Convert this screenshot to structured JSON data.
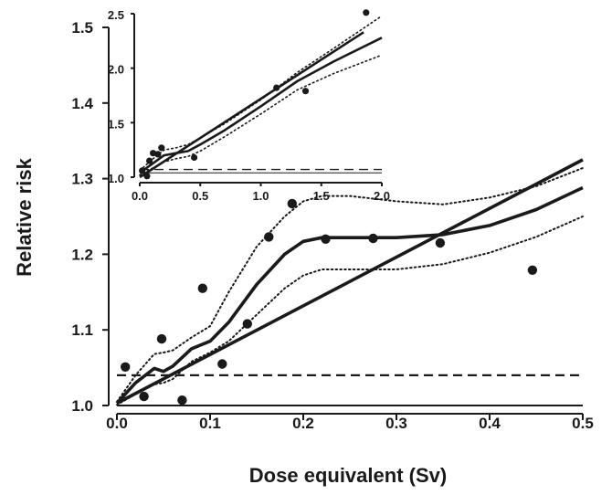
{
  "chart_data": [
    {
      "panel": "main",
      "type": "scatter",
      "title": "",
      "xlabel": "Dose equivalent (Sv)",
      "ylabel": "Relative risk",
      "xlim": [
        0.0,
        0.5
      ],
      "ylim": [
        1.0,
        1.5
      ],
      "x_ticks": [
        "0.0",
        "0.1",
        "0.2",
        "0.3",
        "0.4",
        "0.5"
      ],
      "y_ticks": [
        "1.0",
        "1.1",
        "1.2",
        "1.3",
        "1.4",
        "1.5"
      ],
      "grid": false,
      "legend": "none",
      "points": {
        "x": [
          0.009,
          0.029,
          0.048,
          0.07,
          0.092,
          0.113,
          0.14,
          0.163,
          0.188,
          0.224,
          0.275,
          0.347,
          0.446
        ],
        "y": [
          1.051,
          1.012,
          1.088,
          1.007,
          1.155,
          1.055,
          1.108,
          1.223,
          1.267,
          1.22,
          1.221,
          1.215,
          1.179
        ]
      },
      "lines": [
        {
          "role": "linear-fit",
          "style": "solid-thick",
          "x": [
            0.0,
            0.5
          ],
          "y": [
            1.003,
            1.325
          ]
        },
        {
          "role": "smooth-fit",
          "style": "solid-thick",
          "x": [
            0.0,
            0.02,
            0.04,
            0.05,
            0.06,
            0.08,
            0.1,
            0.12,
            0.15,
            0.18,
            0.2,
            0.22,
            0.25,
            0.3,
            0.35,
            0.4,
            0.45,
            0.5
          ],
          "y": [
            1.003,
            1.03,
            1.049,
            1.045,
            1.052,
            1.075,
            1.085,
            1.11,
            1.16,
            1.2,
            1.217,
            1.222,
            1.222,
            1.222,
            1.226,
            1.238,
            1.259,
            1.288
          ]
        },
        {
          "role": "upper-ci",
          "style": "dotted",
          "x": [
            0.0,
            0.02,
            0.04,
            0.05,
            0.06,
            0.08,
            0.1,
            0.12,
            0.15,
            0.18,
            0.2,
            0.22,
            0.25,
            0.3,
            0.35,
            0.4,
            0.45,
            0.5
          ],
          "y": [
            1.005,
            1.04,
            1.068,
            1.07,
            1.073,
            1.09,
            1.105,
            1.15,
            1.21,
            1.25,
            1.27,
            1.277,
            1.277,
            1.27,
            1.266,
            1.275,
            1.29,
            1.314
          ]
        },
        {
          "role": "lower-ci",
          "style": "dotted",
          "x": [
            0.0,
            0.02,
            0.04,
            0.05,
            0.06,
            0.08,
            0.1,
            0.12,
            0.15,
            0.18,
            0.2,
            0.22,
            0.25,
            0.3,
            0.35,
            0.4,
            0.45,
            0.5
          ],
          "y": [
            1.001,
            1.015,
            1.028,
            1.03,
            1.035,
            1.058,
            1.07,
            1.085,
            1.12,
            1.155,
            1.172,
            1.18,
            1.18,
            1.18,
            1.187,
            1.202,
            1.223,
            1.25
          ]
        },
        {
          "role": "reference-dashed",
          "style": "dashed",
          "x": [
            0.0,
            0.5
          ],
          "y": [
            1.04,
            1.04
          ]
        },
        {
          "role": "baseline",
          "style": "solid-thin",
          "x": [
            0.0,
            0.5
          ],
          "y": [
            1.0,
            1.0
          ]
        }
      ]
    },
    {
      "panel": "inset",
      "type": "scatter",
      "title": "",
      "xlabel": "",
      "ylabel": "",
      "xlim": [
        0.0,
        2.0
      ],
      "ylim": [
        1.0,
        2.5
      ],
      "x_ticks": [
        "0.0",
        "0.5",
        "1.0",
        "1.5",
        "2.0"
      ],
      "y_ticks": [
        "1.0",
        "1.5",
        "2.0",
        "2.5"
      ],
      "grid": false,
      "legend": "none",
      "points": {
        "x": [
          0.02,
          0.06,
          0.08,
          0.11,
          0.15,
          0.18,
          0.45,
          1.13,
          1.37,
          1.87
        ],
        "y": [
          1.06,
          1.01,
          1.15,
          1.22,
          1.21,
          1.27,
          1.18,
          1.82,
          1.79,
          2.51
        ]
      },
      "lines": [
        {
          "role": "linear-fit",
          "style": "solid-thick",
          "x": [
            0.0,
            1.85
          ],
          "y": [
            1.0,
            2.33
          ]
        },
        {
          "role": "smooth-fit",
          "style": "solid-thick",
          "x": [
            0.0,
            0.1,
            0.2,
            0.3,
            0.4,
            0.5,
            0.7,
            1.0,
            1.3,
            1.6,
            2.0
          ],
          "y": [
            1.04,
            1.12,
            1.2,
            1.22,
            1.24,
            1.3,
            1.43,
            1.65,
            1.88,
            2.06,
            2.28
          ]
        },
        {
          "role": "upper-ci",
          "style": "dotted",
          "x": [
            0.0,
            0.1,
            0.2,
            0.3,
            0.4,
            0.5,
            0.7,
            1.0,
            1.3,
            1.6,
            2.0
          ],
          "y": [
            1.06,
            1.16,
            1.25,
            1.27,
            1.3,
            1.36,
            1.49,
            1.71,
            1.96,
            2.18,
            2.48
          ]
        },
        {
          "role": "lower-ci",
          "style": "dotted",
          "x": [
            0.0,
            0.1,
            0.2,
            0.3,
            0.4,
            0.5,
            0.7,
            1.0,
            1.3,
            1.6,
            2.0
          ],
          "y": [
            1.02,
            1.08,
            1.14,
            1.17,
            1.19,
            1.24,
            1.37,
            1.58,
            1.8,
            1.95,
            2.12
          ]
        },
        {
          "role": "reference-dashed",
          "style": "dashed",
          "x": [
            0.0,
            2.0
          ],
          "y": [
            1.07,
            1.07
          ]
        },
        {
          "role": "baseline",
          "style": "solid-thin",
          "x": [
            0.0,
            2.0
          ],
          "y": [
            1.04,
            1.04
          ]
        }
      ]
    }
  ]
}
